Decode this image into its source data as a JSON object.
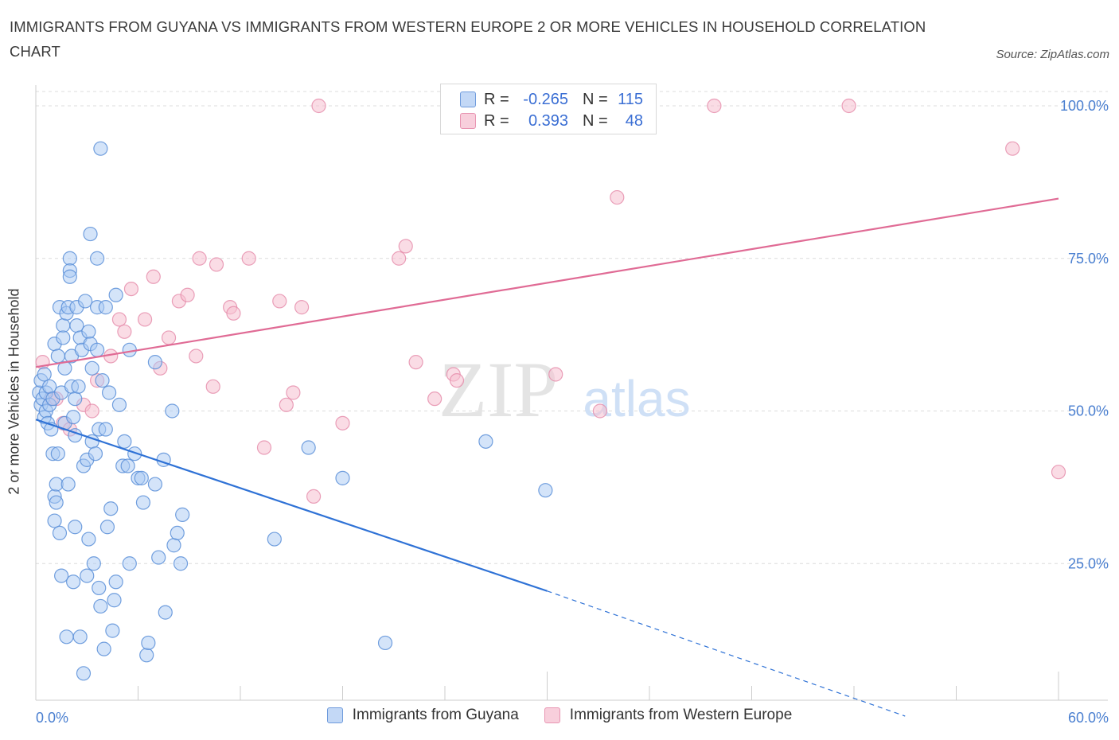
{
  "title": "IMMIGRANTS FROM GUYANA VS IMMIGRANTS FROM WESTERN EUROPE 2 OR MORE VEHICLES IN HOUSEHOLD CORRELATION CHART",
  "source": "Source: ZipAtlas.com",
  "watermark": {
    "zip": "ZIP",
    "atlas": "atlas"
  },
  "colors": {
    "blue_fill": "#a9c9f3",
    "blue_stroke": "#5b8fd8",
    "blue_line": "#2f72d6",
    "pink_fill": "#f6bfd0",
    "pink_stroke": "#e58aa9",
    "pink_line": "#e06b95",
    "axis_label": "#4a7fd0",
    "grid": "#dcdcdc"
  },
  "legend_top": {
    "rows": [
      {
        "r_label": "R =",
        "r_value": "-0.265",
        "n_label": "N =",
        "n_value": "115"
      },
      {
        "r_label": "R =",
        "r_value": "0.393",
        "n_label": "N =",
        "n_value": "48"
      }
    ]
  },
  "chart_data": {
    "type": "scatter",
    "title": "IMMIGRANTS FROM GUYANA VS IMMIGRANTS FROM WESTERN EUROPE 2 OR MORE VEHICLES IN HOUSEHOLD CORRELATION CHART",
    "xlabel": "",
    "ylabel": "2 or more Vehicles in Household",
    "xlim": [
      0,
      60
    ],
    "ylim": [
      0,
      100
    ],
    "x_tick_labels": [
      "0.0%",
      "60.0%"
    ],
    "y_tick_labels": [
      "100.0%",
      "75.0%",
      "50.0%",
      "25.0%"
    ],
    "y_ticks": [
      100,
      75,
      50,
      25
    ],
    "grid": true,
    "legend_position": "bottom",
    "series": [
      {
        "name": "Immigrants from Guyana",
        "color": "#a9c9f3",
        "r": -0.265,
        "n": 115,
        "trend": {
          "x0": 0,
          "y0": 48.6,
          "x1": 30,
          "y1": 20.5,
          "dash_to_x": 51,
          "dash_to_y": 0
        },
        "points": [
          [
            0.2,
            53
          ],
          [
            0.3,
            51
          ],
          [
            0.3,
            55
          ],
          [
            0.4,
            52
          ],
          [
            0.5,
            56
          ],
          [
            0.5,
            49
          ],
          [
            0.6,
            53
          ],
          [
            0.6,
            50
          ],
          [
            0.7,
            48
          ],
          [
            0.8,
            51
          ],
          [
            0.8,
            54
          ],
          [
            0.9,
            47
          ],
          [
            1.0,
            52
          ],
          [
            1.0,
            43
          ],
          [
            1.1,
            36
          ],
          [
            1.1,
            32
          ],
          [
            1.1,
            61
          ],
          [
            1.2,
            38
          ],
          [
            1.2,
            35
          ],
          [
            1.3,
            43
          ],
          [
            1.3,
            59
          ],
          [
            1.4,
            67
          ],
          [
            1.4,
            30
          ],
          [
            1.5,
            23
          ],
          [
            1.5,
            53
          ],
          [
            1.6,
            64
          ],
          [
            1.6,
            62
          ],
          [
            1.7,
            57
          ],
          [
            1.7,
            48
          ],
          [
            1.8,
            66
          ],
          [
            1.8,
            13
          ],
          [
            1.9,
            38
          ],
          [
            1.9,
            67
          ],
          [
            2.0,
            75
          ],
          [
            2.0,
            73
          ],
          [
            2.0,
            72
          ],
          [
            2.1,
            54
          ],
          [
            2.1,
            59
          ],
          [
            2.2,
            49
          ],
          [
            2.2,
            22
          ],
          [
            2.3,
            46
          ],
          [
            2.3,
            31
          ],
          [
            2.3,
            52
          ],
          [
            2.4,
            67
          ],
          [
            2.4,
            64
          ],
          [
            2.5,
            54
          ],
          [
            2.6,
            13
          ],
          [
            2.6,
            62
          ],
          [
            2.7,
            60
          ],
          [
            2.8,
            7
          ],
          [
            2.8,
            41
          ],
          [
            2.9,
            68
          ],
          [
            3.0,
            42
          ],
          [
            3.0,
            23
          ],
          [
            3.1,
            29
          ],
          [
            3.1,
            63
          ],
          [
            3.2,
            79
          ],
          [
            3.2,
            61
          ],
          [
            3.3,
            57
          ],
          [
            3.3,
            45
          ],
          [
            3.4,
            25
          ],
          [
            3.5,
            43
          ],
          [
            3.6,
            75
          ],
          [
            3.6,
            60
          ],
          [
            3.6,
            67
          ],
          [
            3.7,
            21
          ],
          [
            3.7,
            47
          ],
          [
            3.8,
            18
          ],
          [
            3.9,
            55
          ],
          [
            4.0,
            11
          ],
          [
            4.1,
            47
          ],
          [
            4.1,
            67
          ],
          [
            4.2,
            31
          ],
          [
            4.3,
            53
          ],
          [
            4.4,
            34
          ],
          [
            4.5,
            14
          ],
          [
            4.6,
            19
          ],
          [
            4.7,
            69
          ],
          [
            4.7,
            22
          ],
          [
            4.9,
            51
          ],
          [
            5.1,
            41
          ],
          [
            5.2,
            45
          ],
          [
            5.4,
            41
          ],
          [
            5.5,
            60
          ],
          [
            5.5,
            25
          ],
          [
            5.8,
            43
          ],
          [
            6.0,
            39
          ],
          [
            6.2,
            39
          ],
          [
            6.3,
            35
          ],
          [
            6.5,
            10
          ],
          [
            6.6,
            12
          ],
          [
            7.0,
            58
          ],
          [
            7.0,
            38
          ],
          [
            7.2,
            26
          ],
          [
            7.5,
            42
          ],
          [
            7.6,
            17
          ],
          [
            8.0,
            50
          ],
          [
            8.1,
            28
          ],
          [
            8.3,
            30
          ],
          [
            8.5,
            25
          ],
          [
            8.6,
            33
          ],
          [
            14.0,
            29
          ],
          [
            16.0,
            44
          ],
          [
            18.0,
            39
          ],
          [
            20.5,
            12
          ],
          [
            26.4,
            45
          ],
          [
            29.9,
            37
          ],
          [
            3.8,
            93
          ]
        ]
      },
      {
        "name": "Immigrants from Western Europe",
        "color": "#f6bfd0",
        "r": 0.393,
        "n": 48,
        "trend": {
          "x0": 0,
          "y0": 57.2,
          "x1": 60,
          "y1": 84.8
        },
        "points": [
          [
            0.4,
            58
          ],
          [
            0.9,
            52
          ],
          [
            1.2,
            52
          ],
          [
            1.6,
            48
          ],
          [
            2.0,
            47
          ],
          [
            2.8,
            51
          ],
          [
            3.3,
            50
          ],
          [
            3.6,
            55
          ],
          [
            4.4,
            59
          ],
          [
            4.9,
            65
          ],
          [
            5.2,
            63
          ],
          [
            5.6,
            70
          ],
          [
            6.4,
            65
          ],
          [
            6.9,
            72
          ],
          [
            7.3,
            57
          ],
          [
            7.8,
            62
          ],
          [
            8.4,
            68
          ],
          [
            8.9,
            69
          ],
          [
            9.4,
            59
          ],
          [
            9.6,
            75
          ],
          [
            10.4,
            54
          ],
          [
            10.6,
            74
          ],
          [
            11.4,
            67
          ],
          [
            11.6,
            66
          ],
          [
            12.5,
            75
          ],
          [
            13.4,
            44
          ],
          [
            14.3,
            68
          ],
          [
            14.7,
            51
          ],
          [
            15.1,
            53
          ],
          [
            15.6,
            67
          ],
          [
            16.3,
            36
          ],
          [
            16.6,
            100
          ],
          [
            18.0,
            48
          ],
          [
            21.3,
            75
          ],
          [
            21.7,
            77
          ],
          [
            22.3,
            58
          ],
          [
            23.4,
            52
          ],
          [
            24.5,
            56
          ],
          [
            24.7,
            55
          ],
          [
            30.5,
            56
          ],
          [
            31.7,
            100
          ],
          [
            33.1,
            50
          ],
          [
            34.1,
            85
          ],
          [
            39.8,
            100
          ],
          [
            47.7,
            100
          ],
          [
            57.3,
            93
          ],
          [
            60.0,
            40
          ]
        ]
      }
    ]
  }
}
